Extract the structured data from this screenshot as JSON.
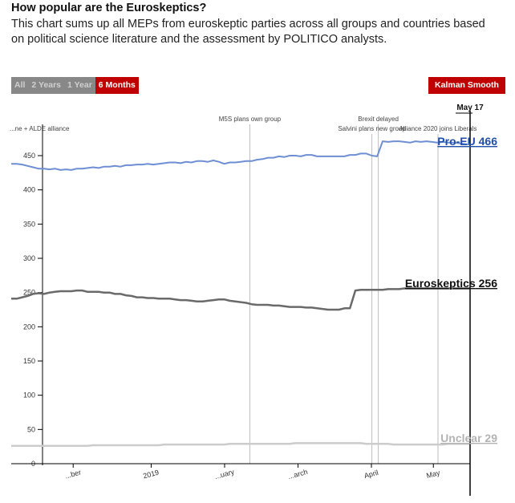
{
  "header": {
    "title": "How popular are the Euroskeptics?",
    "subtitle": "This chart sums up all MEPs from euroskeptic parties across all groups and countries based on political science literature and the assessment by POLITICO analysts."
  },
  "controls": {
    "ranges": [
      {
        "label": "All",
        "active": false
      },
      {
        "label": "2 Years",
        "active": false
      },
      {
        "label": "1 Year",
        "active": false
      },
      {
        "label": "6 Months",
        "active": true
      }
    ],
    "smooth_label": "Kalman Smooth"
  },
  "colors": {
    "pro_eu": "#6e8fd3",
    "pro_eu_label": "#1f4fa8",
    "euroskeptics": "#6a6a6a",
    "unclear": "#cccccc",
    "unclear_label": "#b3b3b3",
    "accent": "#c00000"
  },
  "chart_data": {
    "type": "line",
    "ylim": [
      0,
      470
    ],
    "y_ticks": [
      0,
      50,
      100,
      150,
      200,
      250,
      300,
      350,
      400,
      450
    ],
    "x_ticks": [
      "...ber",
      "2019",
      "...uary",
      "...arch",
      "April",
      "May"
    ],
    "current_marker": "May 17",
    "series": [
      {
        "name": "Pro-EU",
        "key": "pro_eu",
        "current_value": 466,
        "values": [
          438,
          438,
          437,
          435,
          433,
          431,
          431,
          430,
          431,
          429,
          430,
          429,
          431,
          431,
          432,
          433,
          432,
          434,
          434,
          435,
          434,
          436,
          436,
          437,
          437,
          438,
          437,
          438,
          439,
          440,
          440,
          439,
          441,
          440,
          442,
          442,
          441,
          443,
          441,
          438,
          440,
          440,
          441,
          442,
          442,
          444,
          445,
          447,
          447,
          449,
          448,
          450,
          450,
          449,
          451,
          451,
          449,
          449,
          449,
          449,
          449,
          449,
          451,
          451,
          453,
          453,
          450,
          449,
          471,
          470,
          471,
          471,
          470,
          469,
          471,
          470,
          471,
          470,
          469,
          470,
          469,
          469,
          468,
          467,
          466
        ]
      },
      {
        "name": "Euroskeptics",
        "key": "euroskeptics",
        "current_value": 256,
        "values": [
          241,
          241,
          243,
          245,
          248,
          249,
          248,
          250,
          251,
          252,
          252,
          252,
          253,
          253,
          251,
          251,
          251,
          250,
          250,
          248,
          248,
          246,
          245,
          243,
          243,
          242,
          242,
          241,
          241,
          241,
          240,
          239,
          239,
          238,
          237,
          237,
          238,
          239,
          240,
          240,
          238,
          237,
          236,
          235,
          233,
          232,
          232,
          232,
          231,
          231,
          230,
          229,
          229,
          229,
          228,
          228,
          227,
          226,
          225,
          225,
          225,
          227,
          227,
          253,
          254,
          254,
          254,
          254,
          254,
          255,
          255,
          255,
          256,
          256,
          256,
          256,
          256,
          256,
          256,
          256,
          256,
          256,
          256,
          256,
          256
        ]
      },
      {
        "name": "Unclear",
        "key": "unclear",
        "current_value": 29,
        "values": [
          26,
          26,
          26,
          26,
          26,
          26,
          26,
          26,
          26,
          26,
          26,
          26,
          26,
          26,
          26,
          27,
          27,
          27,
          27,
          27,
          27,
          27,
          27,
          27,
          27,
          27,
          27,
          27,
          28,
          28,
          28,
          28,
          28,
          28,
          28,
          28,
          28,
          28,
          28,
          28,
          29,
          29,
          29,
          29,
          29,
          29,
          29,
          29,
          29,
          29,
          29,
          29,
          30,
          30,
          30,
          30,
          30,
          30,
          30,
          30,
          30,
          30,
          30,
          30,
          30,
          29,
          29,
          29,
          29,
          29,
          28,
          28,
          28,
          28,
          28,
          28,
          28,
          28,
          28,
          28,
          29,
          29,
          29,
          29,
          29
        ]
      }
    ],
    "annotations": [
      {
        "label": "...ne + ALDE alliance",
        "pos": 0.04
      },
      {
        "label": "M5S plans own group",
        "pos": 0.52
      },
      {
        "label": "Brexit delayed",
        "pos": 0.8
      },
      {
        "label": "Salvini plans new group",
        "pos": 0.786
      },
      {
        "label": "Alliance 2020 joins Liberals",
        "pos": 0.93
      }
    ]
  }
}
